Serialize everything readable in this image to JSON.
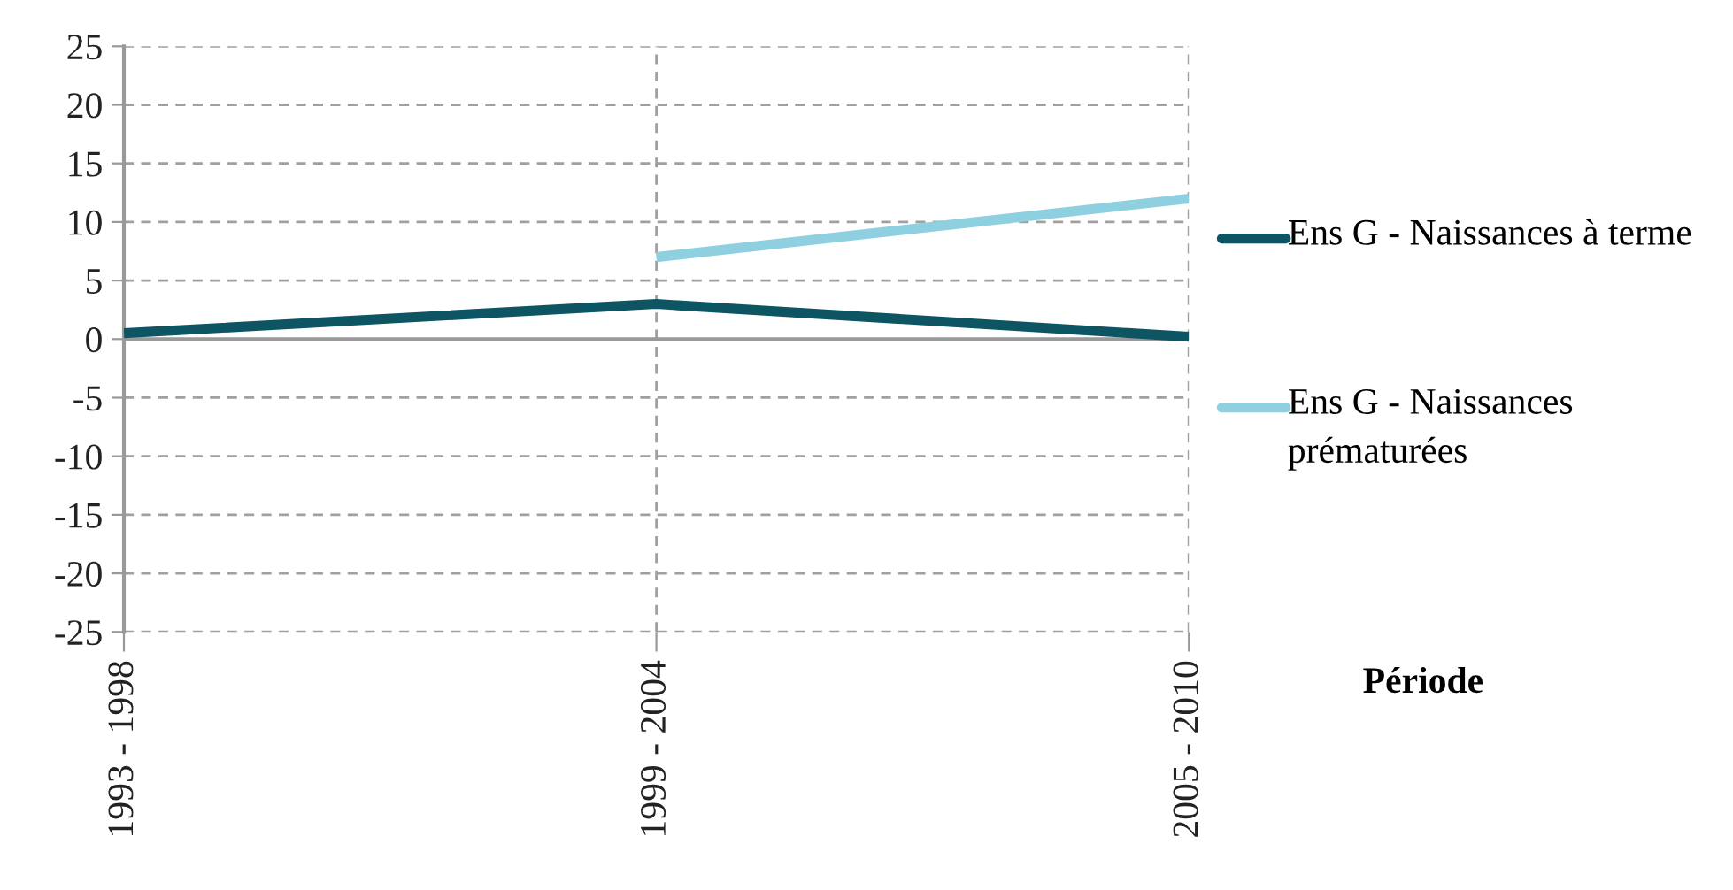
{
  "chart_data": {
    "type": "line",
    "xlabel": "Période",
    "categories": [
      "1993 - 1998",
      "1999 - 2004",
      "2005 - 2010"
    ],
    "series": [
      {
        "name": "Ens G - Naissances à terme",
        "color": "#0d5563",
        "values": [
          0.5,
          3,
          0.2
        ]
      },
      {
        "name": "Ens G - Naissances prématurées",
        "color": "#8ecfe0",
        "values": [
          null,
          7,
          12
        ]
      }
    ],
    "ylim": [
      -25,
      25
    ],
    "yticks": [
      -25,
      -20,
      -15,
      -10,
      -5,
      0,
      5,
      10,
      15,
      20,
      25
    ],
    "grid": true,
    "legend": "right",
    "marker": "none",
    "line_style": "solid"
  }
}
